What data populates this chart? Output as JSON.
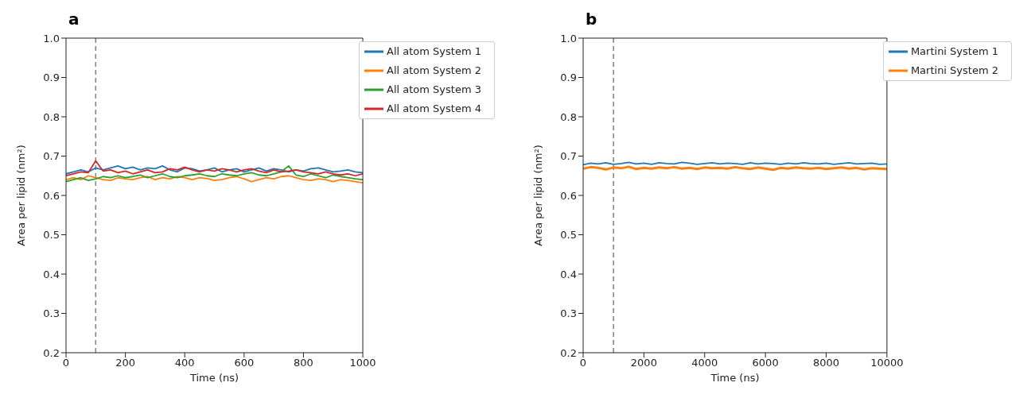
{
  "chart_data": [
    {
      "type": "line",
      "title": "a",
      "xlabel": "Time (ns)",
      "ylabel": "Area per lipid (nm²)",
      "xlim": [
        0,
        1000
      ],
      "xticks": [
        0,
        200,
        400,
        600,
        800,
        1000
      ],
      "ylim": [
        0.2,
        1.0
      ],
      "yticks": [
        0.2,
        0.3,
        0.4,
        0.5,
        0.6,
        0.7,
        0.8,
        0.9,
        {
          "value": 1.0,
          "label": "1.0"
        }
      ],
      "grid": false,
      "legend": "top right",
      "marker": "none",
      "line_style": "solid",
      "x": [
        0,
        25,
        50,
        75,
        100,
        125,
        150,
        175,
        200,
        225,
        250,
        275,
        300,
        325,
        350,
        375,
        400,
        425,
        450,
        475,
        500,
        525,
        550,
        575,
        600,
        625,
        650,
        675,
        700,
        725,
        750,
        775,
        800,
        825,
        850,
        875,
        900,
        925,
        950,
        975,
        1000
      ],
      "series": [
        {
          "name": "All atom System 1",
          "color": "#1f77b4",
          "values": [
            0.655,
            0.66,
            0.665,
            0.66,
            0.67,
            0.665,
            0.67,
            0.675,
            0.668,
            0.672,
            0.665,
            0.67,
            0.668,
            0.675,
            0.665,
            0.66,
            0.67,
            0.668,
            0.662,
            0.665,
            0.67,
            0.66,
            0.665,
            0.668,
            0.66,
            0.665,
            0.67,
            0.662,
            0.668,
            0.665,
            0.66,
            0.665,
            0.662,
            0.668,
            0.67,
            0.665,
            0.66,
            0.662,
            0.665,
            0.66,
            0.658
          ]
        },
        {
          "name": "All atom System 2",
          "color": "#ff7f0e",
          "values": [
            0.64,
            0.645,
            0.64,
            0.65,
            0.645,
            0.64,
            0.638,
            0.645,
            0.642,
            0.64,
            0.645,
            0.648,
            0.64,
            0.645,
            0.642,
            0.648,
            0.645,
            0.64,
            0.645,
            0.643,
            0.638,
            0.64,
            0.645,
            0.648,
            0.642,
            0.635,
            0.64,
            0.645,
            0.642,
            0.648,
            0.65,
            0.645,
            0.64,
            0.638,
            0.642,
            0.64,
            0.635,
            0.64,
            0.638,
            0.635,
            0.632
          ]
        },
        {
          "name": "All atom System 3",
          "color": "#2ca02c",
          "values": [
            0.635,
            0.64,
            0.645,
            0.638,
            0.642,
            0.648,
            0.645,
            0.65,
            0.645,
            0.648,
            0.652,
            0.645,
            0.65,
            0.655,
            0.648,
            0.645,
            0.65,
            0.652,
            0.655,
            0.65,
            0.648,
            0.655,
            0.652,
            0.65,
            0.655,
            0.658,
            0.652,
            0.65,
            0.655,
            0.66,
            0.675,
            0.652,
            0.648,
            0.655,
            0.65,
            0.645,
            0.652,
            0.648,
            0.645,
            0.642,
            0.64
          ]
        },
        {
          "name": "All atom System 4",
          "color": "#d62728",
          "values": [
            0.65,
            0.655,
            0.66,
            0.658,
            0.688,
            0.662,
            0.665,
            0.658,
            0.662,
            0.655,
            0.66,
            0.665,
            0.658,
            0.66,
            0.668,
            0.665,
            0.672,
            0.665,
            0.66,
            0.665,
            0.662,
            0.668,
            0.665,
            0.66,
            0.665,
            0.668,
            0.662,
            0.658,
            0.665,
            0.66,
            0.662,
            0.665,
            0.66,
            0.658,
            0.655,
            0.66,
            0.655,
            0.652,
            0.655,
            0.65,
            0.655
          ]
        }
      ],
      "ref_lines": [
        {
          "axis": "x",
          "value": 100,
          "color": "#808080",
          "line_style": "dashed"
        }
      ]
    },
    {
      "type": "line",
      "title": "b",
      "xlabel": "Time (ns)",
      "ylabel": "Area per lipid (nm²)",
      "xlim": [
        0,
        10000
      ],
      "xticks": [
        0,
        2000,
        4000,
        6000,
        8000,
        10000
      ],
      "ylim": [
        0.2,
        1.0
      ],
      "yticks": [
        0.2,
        0.3,
        0.4,
        0.5,
        0.6,
        0.7,
        0.8,
        0.9,
        {
          "value": 1.0,
          "label": "1.0"
        }
      ],
      "grid": false,
      "legend": "top right",
      "marker": "none",
      "line_style": "solid",
      "x": [
        0,
        250,
        500,
        750,
        1000,
        1250,
        1500,
        1750,
        2000,
        2250,
        2500,
        2750,
        3000,
        3250,
        3500,
        3750,
        4000,
        4250,
        4500,
        4750,
        5000,
        5250,
        5500,
        5750,
        6000,
        6250,
        6500,
        6750,
        7000,
        7250,
        7500,
        7750,
        8000,
        8250,
        8500,
        8750,
        9000,
        9250,
        9500,
        9750,
        10000
      ],
      "series": [
        {
          "name": "Martini System 1",
          "color": "#1f77b4",
          "values": [
            0.678,
            0.682,
            0.68,
            0.683,
            0.679,
            0.681,
            0.684,
            0.68,
            0.682,
            0.679,
            0.683,
            0.681,
            0.68,
            0.684,
            0.682,
            0.679,
            0.681,
            0.683,
            0.68,
            0.682,
            0.681,
            0.679,
            0.683,
            0.68,
            0.682,
            0.681,
            0.679,
            0.682,
            0.68,
            0.683,
            0.681,
            0.68,
            0.682,
            0.679,
            0.681,
            0.683,
            0.68,
            0.681,
            0.682,
            0.679,
            0.68
          ]
        },
        {
          "name": "Martini System 2",
          "color": "#ff7f0e",
          "values": [
            0.668,
            0.672,
            0.67,
            0.666,
            0.671,
            0.669,
            0.673,
            0.667,
            0.67,
            0.668,
            0.671,
            0.669,
            0.672,
            0.668,
            0.67,
            0.667,
            0.671,
            0.669,
            0.67,
            0.668,
            0.672,
            0.669,
            0.667,
            0.671,
            0.668,
            0.665,
            0.67,
            0.668,
            0.671,
            0.669,
            0.668,
            0.67,
            0.667,
            0.669,
            0.671,
            0.668,
            0.67,
            0.666,
            0.669,
            0.668,
            0.667
          ]
        }
      ],
      "ref_lines": [
        {
          "axis": "x",
          "value": 1000,
          "color": "#808080",
          "line_style": "dashed"
        }
      ]
    }
  ]
}
